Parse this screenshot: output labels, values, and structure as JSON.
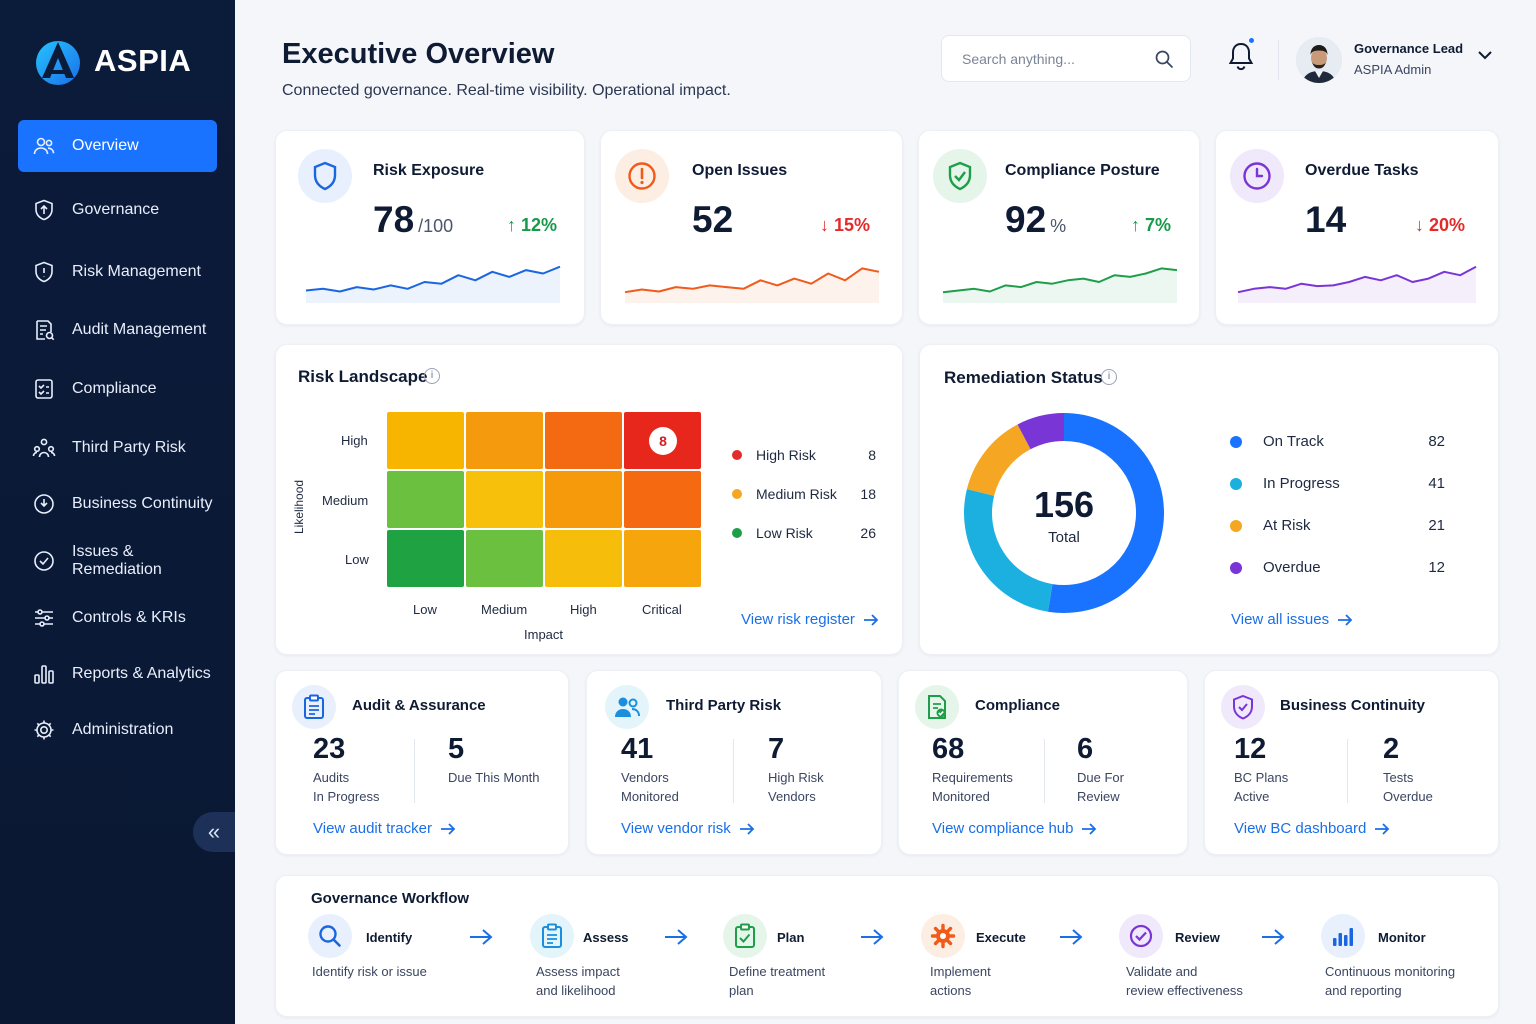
{
  "app": {
    "name": "ASPIA"
  },
  "sidebar": {
    "items": [
      {
        "label": "Overview",
        "icon": "users-icon"
      },
      {
        "label": "Governance",
        "icon": "shield-icon"
      },
      {
        "label": "Risk Management",
        "icon": "shield-alert-icon"
      },
      {
        "label": "Audit Management",
        "icon": "audit-doc-icon"
      },
      {
        "label": "Compliance",
        "icon": "checklist-icon"
      },
      {
        "label": "Third Party Risk",
        "icon": "network-users-icon"
      },
      {
        "label": "Business Continuity",
        "icon": "continuity-icon"
      },
      {
        "label": "Issues & Remediation",
        "icon": "check-circle-icon"
      },
      {
        "label": "Controls & KRIs",
        "icon": "sliders-icon"
      },
      {
        "label": "Reports & Analytics",
        "icon": "bar-chart-icon"
      },
      {
        "label": "Administration",
        "icon": "gear-icon"
      }
    ],
    "active": "Overview",
    "collapse_glyph": "«"
  },
  "header": {
    "title": "Executive Overview",
    "subtitle": "Connected governance. Real-time visibility. Operational impact.",
    "search_placeholder": "Search anything...",
    "user_name": "Governance Lead",
    "user_role": "ASPIA Admin"
  },
  "kpis": [
    {
      "title": "Risk Exposure",
      "value": "78",
      "suffix": "/100",
      "change": "↑ 12%",
      "trend": "up",
      "color": "#1a66e0",
      "spark": [
        0.25,
        0.3,
        0.22,
        0.35,
        0.28,
        0.4,
        0.3,
        0.5,
        0.45,
        0.7,
        0.55,
        0.8,
        0.65,
        0.85,
        0.75,
        0.95
      ]
    },
    {
      "title": "Open Issues",
      "value": "52",
      "suffix": "",
      "change": "↓ 15%",
      "trend": "down",
      "color": "#f05a1a",
      "spark": [
        0.2,
        0.28,
        0.22,
        0.35,
        0.3,
        0.4,
        0.35,
        0.3,
        0.55,
        0.4,
        0.6,
        0.45,
        0.75,
        0.55,
        0.9,
        0.8
      ]
    },
    {
      "title": "Compliance Posture",
      "value": "92",
      "suffix": "%",
      "change": "↑ 7%",
      "trend": "up",
      "color": "#1f9e4a",
      "spark": [
        0.2,
        0.25,
        0.3,
        0.22,
        0.4,
        0.35,
        0.5,
        0.45,
        0.55,
        0.6,
        0.5,
        0.7,
        0.65,
        0.75,
        0.9,
        0.85
      ]
    },
    {
      "title": "Overdue Tasks",
      "value": "14",
      "suffix": "",
      "change": "↓ 20%",
      "trend": "down",
      "color": "#7a35d6",
      "spark": [
        0.2,
        0.3,
        0.35,
        0.3,
        0.45,
        0.38,
        0.4,
        0.5,
        0.65,
        0.55,
        0.7,
        0.5,
        0.6,
        0.8,
        0.7,
        0.95
      ]
    }
  ],
  "risk_landscape": {
    "title": "Risk Landscape",
    "y_axis_label": "Likelihood",
    "x_axis_label": "Impact",
    "rows": [
      "High",
      "Medium",
      "Low"
    ],
    "cols": [
      "Low",
      "Medium",
      "High",
      "Critical"
    ],
    "badge": "8",
    "legend": [
      {
        "label": "High Risk",
        "value": "8",
        "color": "#e32b2b"
      },
      {
        "label": "Medium Risk",
        "value": "18",
        "color": "#f5a623"
      },
      {
        "label": "Low Risk",
        "value": "26",
        "color": "#1f9e4a"
      }
    ],
    "link": "View risk register"
  },
  "remediation": {
    "title": "Remediation Status",
    "total": "156",
    "total_label": "Total",
    "legend": [
      {
        "label": "On Track",
        "value": "82",
        "color": "#1a73ff"
      },
      {
        "label": "In Progress",
        "value": "41",
        "color": "#1bb0e0"
      },
      {
        "label": "At Risk",
        "value": "21",
        "color": "#f5a623"
      },
      {
        "label": "Overdue",
        "value": "12",
        "color": "#7a35d6"
      }
    ],
    "link": "View all issues"
  },
  "modules": [
    {
      "title": "Audit & Assurance",
      "n1": "23",
      "l1a": "Audits",
      "l1b": "In Progress",
      "n2": "5",
      "l2a": "Due This Month",
      "l2b": "",
      "link": "View audit tracker",
      "icon": "clipboard-icon"
    },
    {
      "title": "Third Party Risk",
      "n1": "41",
      "l1a": "Vendors",
      "l1b": "Monitored",
      "n2": "7",
      "l2a": "High Risk",
      "l2b": "Vendors",
      "link": "View vendor risk",
      "icon": "users-icon"
    },
    {
      "title": "Compliance",
      "n1": "68",
      "l1a": "Requirements",
      "l1b": "Monitored",
      "n2": "6",
      "l2a": "Due For",
      "l2b": "Review",
      "link": "View compliance hub",
      "icon": "doc-check-icon"
    },
    {
      "title": "Business Continuity",
      "n1": "12",
      "l1a": "BC Plans",
      "l1b": "Active",
      "n2": "2",
      "l2a": "Tests",
      "l2b": "Overdue",
      "link": "View BC dashboard",
      "icon": "shield-check-icon"
    }
  ],
  "workflow": {
    "title": "Governance Workflow",
    "steps": [
      {
        "title": "Identify",
        "d1": "Identify risk or issue",
        "d2": "",
        "icon": "search-icon"
      },
      {
        "title": "Assess",
        "d1": "Assess impact",
        "d2": "and likelihood",
        "icon": "clipboard-icon"
      },
      {
        "title": "Plan",
        "d1": "Define treatment",
        "d2": "plan",
        "icon": "checklist-icon"
      },
      {
        "title": "Execute",
        "d1": "Implement",
        "d2": "actions",
        "icon": "gear-icon"
      },
      {
        "title": "Review",
        "d1": "Validate and",
        "d2": "review effectiveness",
        "icon": "check-circle-icon"
      },
      {
        "title": "Monitor",
        "d1": "Continuous monitoring",
        "d2": "and reporting",
        "icon": "bar-chart-icon"
      }
    ]
  }
}
